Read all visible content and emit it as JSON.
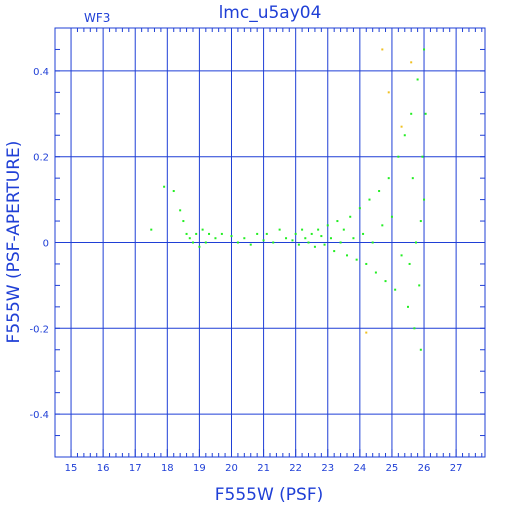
{
  "chart_data": {
    "type": "scatter",
    "title": "lmc_u5ay04",
    "corner_label": "WF3",
    "xlabel": "F555W (PSF)",
    "ylabel": "F555W (PSF-APERTURE)",
    "xlim": [
      14.5,
      27.9
    ],
    "ylim": [
      -0.5,
      0.5
    ],
    "xticks": [
      15,
      16,
      17,
      18,
      19,
      20,
      21,
      22,
      23,
      24,
      25,
      26,
      27
    ],
    "yticks": [
      -0.4,
      -0.2,
      0,
      0.2,
      0.4
    ],
    "ytick_labels": [
      "-0.4",
      "-0.2",
      "0",
      "0.2",
      "0.4"
    ],
    "grid": true,
    "legend": "none",
    "colors": {
      "axes": "#1f3fd6",
      "background": "#ffffff",
      "main_points": "#22ee22",
      "outlier_points": "#f0c020"
    },
    "series": [
      {
        "color": "#22ee22",
        "points": [
          [
            17.5,
            0.03
          ],
          [
            17.9,
            0.13
          ],
          [
            18.2,
            0.12
          ],
          [
            18.4,
            0.075
          ],
          [
            18.5,
            0.05
          ],
          [
            18.6,
            0.02
          ],
          [
            18.7,
            0.01
          ],
          [
            18.8,
            0.0
          ],
          [
            18.9,
            0.02
          ],
          [
            19.0,
            -0.01
          ],
          [
            19.1,
            0.03
          ],
          [
            19.2,
            0.0
          ],
          [
            19.3,
            0.02
          ],
          [
            19.5,
            0.01
          ],
          [
            19.7,
            0.02
          ],
          [
            20.0,
            0.015
          ],
          [
            20.2,
            0.0
          ],
          [
            20.4,
            0.01
          ],
          [
            20.6,
            -0.005
          ],
          [
            20.8,
            0.02
          ],
          [
            21.0,
            0.005
          ],
          [
            21.1,
            0.02
          ],
          [
            21.3,
            0.0
          ],
          [
            21.5,
            0.03
          ],
          [
            21.7,
            0.01
          ],
          [
            21.9,
            0.005
          ],
          [
            22.0,
            0.02
          ],
          [
            22.1,
            -0.005
          ],
          [
            22.2,
            0.03
          ],
          [
            22.3,
            0.01
          ],
          [
            22.4,
            0.0
          ],
          [
            22.5,
            0.02
          ],
          [
            22.6,
            -0.01
          ],
          [
            22.7,
            0.03
          ],
          [
            22.8,
            0.015
          ],
          [
            22.9,
            -0.005
          ],
          [
            23.0,
            0.04
          ],
          [
            23.1,
            0.01
          ],
          [
            23.2,
            -0.02
          ],
          [
            23.3,
            0.05
          ],
          [
            23.4,
            0.0
          ],
          [
            23.5,
            0.03
          ],
          [
            23.6,
            -0.03
          ],
          [
            23.7,
            0.06
          ],
          [
            23.8,
            0.01
          ],
          [
            23.9,
            -0.04
          ],
          [
            24.0,
            0.08
          ],
          [
            24.1,
            0.02
          ],
          [
            24.2,
            -0.05
          ],
          [
            24.3,
            0.1
          ],
          [
            24.4,
            0.0
          ],
          [
            24.5,
            -0.07
          ],
          [
            24.6,
            0.12
          ],
          [
            24.7,
            0.04
          ],
          [
            24.8,
            -0.09
          ],
          [
            24.9,
            0.15
          ],
          [
            25.0,
            0.06
          ],
          [
            25.1,
            -0.11
          ],
          [
            25.2,
            0.2
          ],
          [
            25.3,
            -0.03
          ],
          [
            25.4,
            0.25
          ],
          [
            25.5,
            -0.15
          ],
          [
            25.6,
            0.3
          ],
          [
            25.7,
            -0.2
          ],
          [
            25.8,
            0.38
          ],
          [
            25.9,
            -0.25
          ],
          [
            26.0,
            0.45
          ],
          [
            26.0,
            0.1
          ],
          [
            25.9,
            0.05
          ],
          [
            25.85,
            -0.1
          ],
          [
            25.95,
            0.2
          ],
          [
            26.05,
            0.3
          ],
          [
            25.75,
            0.0
          ],
          [
            25.65,
            0.15
          ],
          [
            25.55,
            -0.05
          ]
        ]
      },
      {
        "color": "#f0c020",
        "points": [
          [
            24.7,
            0.45
          ],
          [
            24.9,
            0.35
          ],
          [
            24.2,
            -0.21
          ],
          [
            25.3,
            0.27
          ],
          [
            25.6,
            0.42
          ]
        ]
      }
    ]
  }
}
